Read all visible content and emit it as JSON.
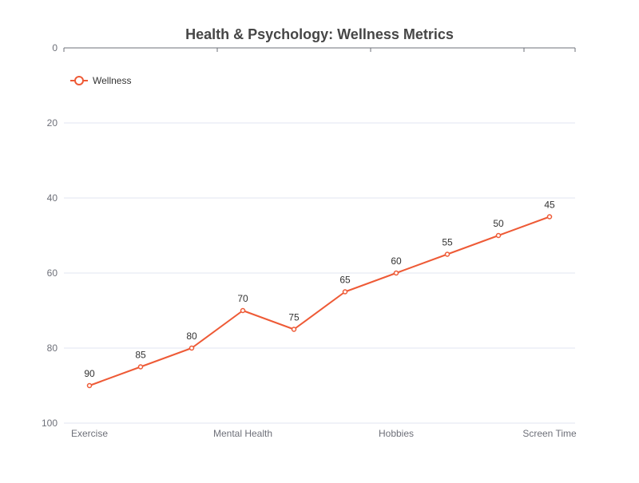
{
  "chart_data": {
    "type": "line",
    "title": "Health & Psychology: Wellness Metrics",
    "xlabel": "",
    "ylabel": "",
    "categories": [
      "Exercise",
      "",
      "",
      "Mental Health",
      "",
      "",
      "Hobbies",
      "",
      "",
      "Screen Time"
    ],
    "x_tick_labels": [
      "Exercise",
      "Mental Health",
      "Hobbies",
      "Screen Time"
    ],
    "series": [
      {
        "name": "Wellness",
        "values": [
          90,
          85,
          80,
          70,
          75,
          65,
          60,
          55,
          50,
          45
        ],
        "color": "#ee5a36"
      }
    ],
    "ylim": [
      0,
      100
    ],
    "y_inverted": true,
    "y_ticks": [
      0,
      20,
      40,
      60,
      80,
      100
    ],
    "grid": true,
    "legend_position": "top-left",
    "x_axis_position": "top"
  }
}
